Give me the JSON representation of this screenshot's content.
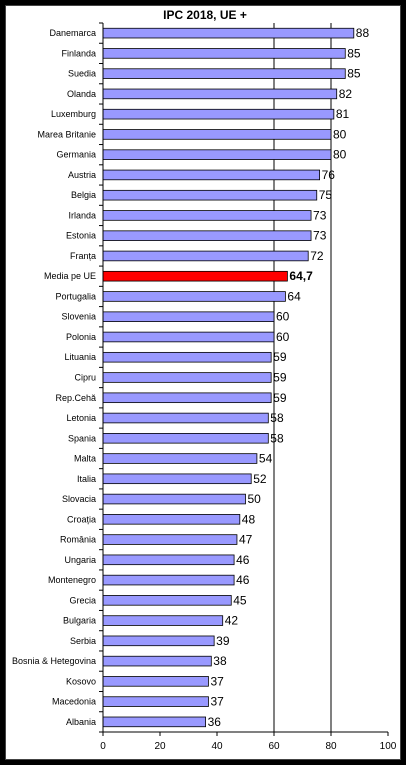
{
  "chart_data": {
    "type": "bar",
    "orientation": "horizontal",
    "title": "IPC 2018, UE +",
    "xlim": [
      0,
      100
    ],
    "xticks": [
      0,
      20,
      40,
      60,
      80,
      100
    ],
    "grid": "vertical lines at 60 and 80",
    "categories": [
      "Danemarca",
      "Finlanda",
      "Suedia",
      "Olanda",
      "Luxemburg",
      "Marea Britanie",
      "Germania",
      "Austria",
      "Belgia",
      "Irlanda",
      "Estonia",
      "Franța",
      "Media pe UE",
      "Portugalia",
      "Slovenia",
      "Polonia",
      "Lituania",
      "Cipru",
      "Rep.Cehă",
      "Letonia",
      "Spania",
      "Malta",
      "Italia",
      "Slovacia",
      "Croația",
      "România",
      "Ungaria",
      "Montenegro",
      "Grecia",
      "Bulgaria",
      "Serbia",
      "Bosnia & Hetegovina",
      "Kosovo",
      "Macedonia",
      "Albania"
    ],
    "values": [
      88,
      85,
      85,
      82,
      81,
      80,
      80,
      76,
      75,
      73,
      73,
      72,
      64.7,
      64,
      60,
      60,
      59,
      59,
      59,
      58,
      58,
      54,
      52,
      50,
      48,
      47,
      46,
      46,
      45,
      42,
      39,
      38,
      37,
      37,
      36
    ],
    "value_labels": [
      "88",
      "85",
      "85",
      "82",
      "81",
      "80",
      "80",
      "76",
      "75",
      "73",
      "73",
      "72",
      "64,7",
      "64",
      "60",
      "60",
      "59",
      "59",
      "59",
      "58",
      "58",
      "54",
      "52",
      "50",
      "48",
      "47",
      "46",
      "46",
      "45",
      "42",
      "39",
      "38",
      "37",
      "37",
      "36"
    ],
    "highlight_category": "Media pe UE",
    "colors": {
      "bar": "#9999ff",
      "bar_border": "#000000",
      "highlight": "#ff0000",
      "gridline": "#000000",
      "frame_background": "#000000",
      "plot_background": "#ffffff"
    }
  }
}
